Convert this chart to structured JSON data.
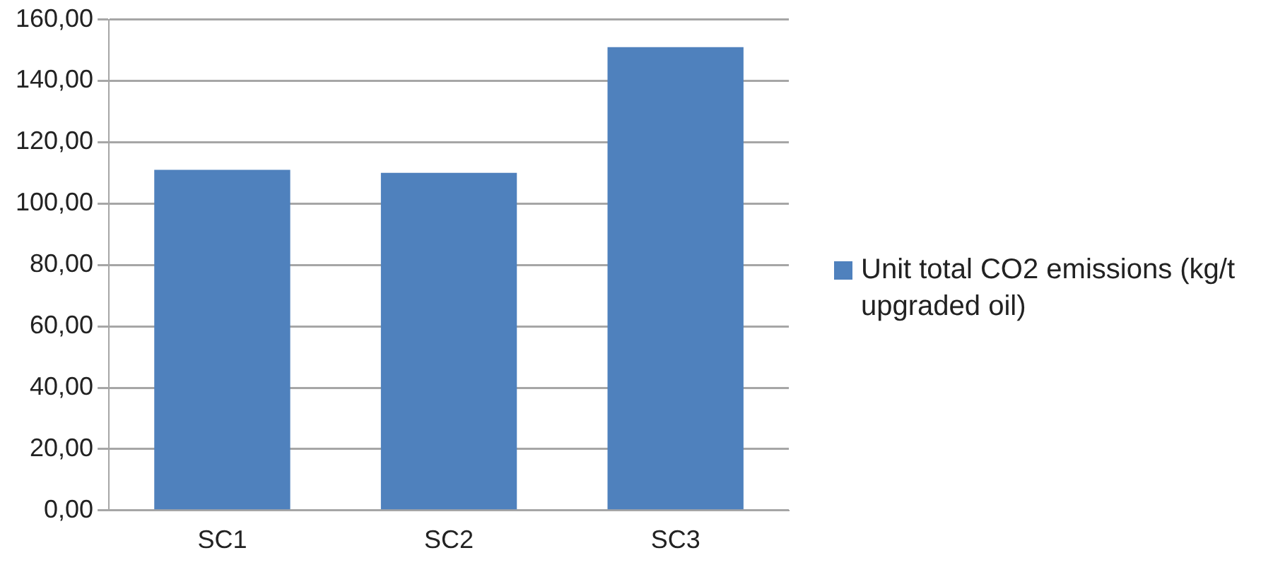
{
  "chart_data": {
    "type": "bar",
    "categories": [
      "SC1",
      "SC2",
      "SC3"
    ],
    "series": [
      {
        "name": "Unit total CO2 emissions (kg/t upgraded oil)",
        "color": "#4f81bd",
        "values": [
          111,
          110,
          151
        ]
      }
    ],
    "ylim": [
      0,
      160
    ],
    "yticks": [
      {
        "value": 0,
        "label": "0,00"
      },
      {
        "value": 20,
        "label": "20,00"
      },
      {
        "value": 40,
        "label": "40,00"
      },
      {
        "value": 60,
        "label": "60,00"
      },
      {
        "value": 80,
        "label": "80,00"
      },
      {
        "value": 100,
        "label": "100,00"
      },
      {
        "value": 120,
        "label": "120,00"
      },
      {
        "value": 140,
        "label": "140,00"
      },
      {
        "value": 160,
        "label": "160,00"
      }
    ],
    "grid": "y",
    "legend": "right"
  }
}
